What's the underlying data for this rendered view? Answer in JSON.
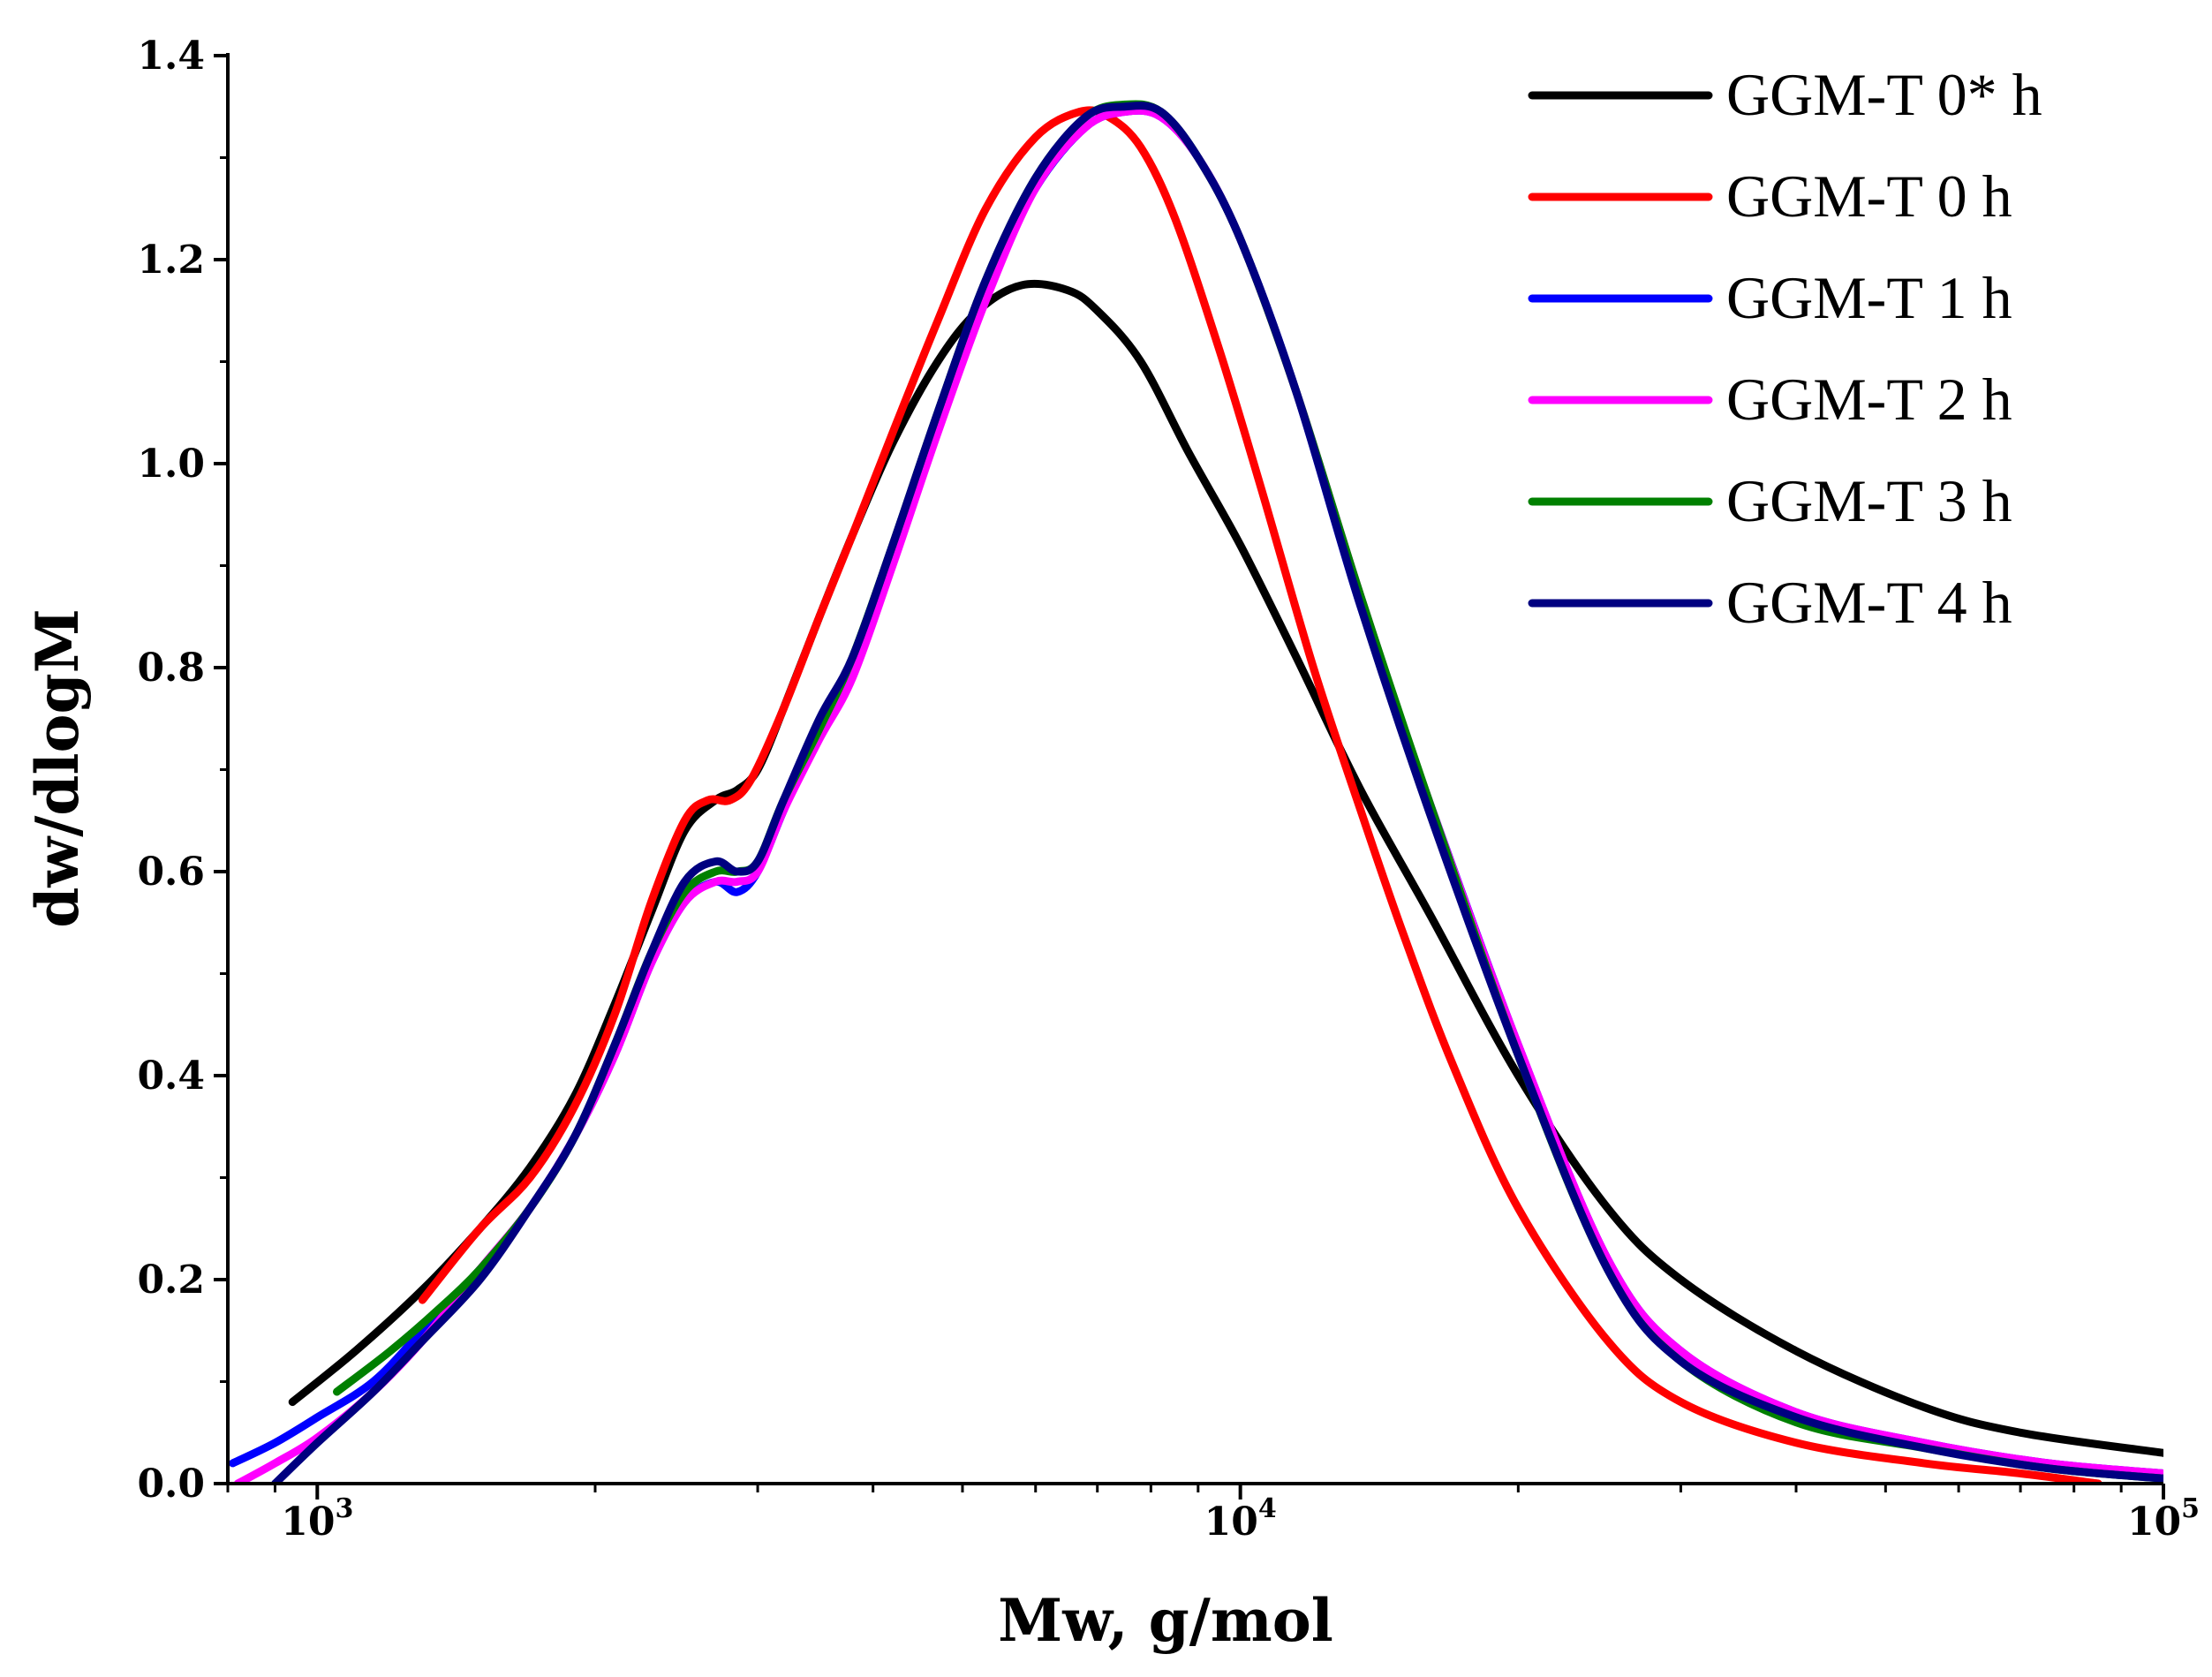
{
  "chart_data": {
    "type": "line",
    "title": "",
    "xlabel": "Mw, g/mol",
    "ylabel": "dw/dlogM",
    "xscale": "log",
    "xlim": [
      800,
      100000
    ],
    "ylim": [
      0,
      1.4
    ],
    "yticks": [
      "0.0",
      "0.2",
      "0.4",
      "0.6",
      "0.8",
      "1.0",
      "1.2",
      "1.4"
    ],
    "xticks": [
      {
        "base": "10",
        "exp": "3"
      },
      {
        "base": "10",
        "exp": "4"
      },
      {
        "base": "10",
        "exp": "5"
      }
    ],
    "grid": false,
    "legend_position": "top-right",
    "series": [
      {
        "name": "GGM-T 0* h",
        "color": "#000000",
        "x": [
          940,
          1100,
          1300,
          1500,
          1700,
          1900,
          2100,
          2300,
          2500,
          2700,
          2850,
          3000,
          3200,
          3500,
          3800,
          4200,
          4700,
          5200,
          5800,
          6500,
          7000,
          7800,
          8800,
          10000,
          11500,
          13500,
          16000,
          20000,
          25000,
          30000,
          40000,
          55000,
          70000,
          100000
        ],
        "y": [
          0.08,
          0.13,
          0.19,
          0.25,
          0.31,
          0.38,
          0.47,
          0.56,
          0.64,
          0.67,
          0.68,
          0.7,
          0.76,
          0.85,
          0.93,
          1.02,
          1.1,
          1.15,
          1.175,
          1.17,
          1.15,
          1.1,
          1.01,
          0.92,
          0.81,
          0.68,
          0.56,
          0.4,
          0.27,
          0.2,
          0.13,
          0.075,
          0.05,
          0.03
        ]
      },
      {
        "name": "GGM-T 0 h",
        "color": "#ff0000",
        "x": [
          1300,
          1500,
          1700,
          1900,
          2100,
          2300,
          2500,
          2650,
          2800,
          2950,
          3200,
          3500,
          3800,
          4200,
          4700,
          5300,
          6000,
          6700,
          7200,
          7800,
          8500,
          9500,
          10500,
          12000,
          13500,
          15000,
          17000,
          20000,
          25000,
          30000,
          40000,
          55000,
          70000,
          85000
        ],
        "y": [
          0.18,
          0.25,
          0.3,
          0.37,
          0.46,
          0.57,
          0.65,
          0.67,
          0.67,
          0.69,
          0.76,
          0.85,
          0.93,
          1.03,
          1.14,
          1.25,
          1.32,
          1.345,
          1.34,
          1.31,
          1.24,
          1.11,
          0.98,
          0.8,
          0.66,
          0.54,
          0.41,
          0.27,
          0.14,
          0.08,
          0.04,
          0.02,
          0.01,
          0.0
        ]
      },
      {
        "name": "GGM-T 1 h",
        "color": "#0000ff",
        "x": [
          810,
          900,
          1000,
          1150,
          1300,
          1500,
          1700,
          1900,
          2100,
          2300,
          2500,
          2700,
          2850,
          3000,
          3200,
          3500,
          3800,
          4200,
          4700,
          5300,
          6000,
          6800,
          7500,
          8200,
          9000,
          10000,
          11500,
          13500,
          16000,
          20000,
          25000,
          30000,
          40000,
          55000,
          75000,
          100000
        ],
        "y": [
          0.02,
          0.04,
          0.065,
          0.1,
          0.15,
          0.21,
          0.27,
          0.34,
          0.42,
          0.51,
          0.57,
          0.59,
          0.58,
          0.6,
          0.66,
          0.74,
          0.8,
          0.91,
          1.04,
          1.17,
          1.27,
          1.33,
          1.345,
          1.34,
          1.3,
          1.22,
          1.07,
          0.86,
          0.67,
          0.43,
          0.22,
          0.13,
          0.07,
          0.04,
          0.02,
          0.01
        ]
      },
      {
        "name": "GGM-T 2 h",
        "color": "#ff00ff",
        "x": [
          820,
          900,
          1000,
          1150,
          1300,
          1500,
          1700,
          1900,
          2100,
          2300,
          2500,
          2700,
          2850,
          3000,
          3200,
          3500,
          3800,
          4200,
          4700,
          5300,
          6000,
          6800,
          7500,
          8200,
          9000,
          10000,
          11500,
          13500,
          16000,
          20000,
          25000,
          30000,
          40000,
          55000,
          75000,
          100000
        ],
        "y": [
          0.0,
          0.02,
          0.045,
          0.09,
          0.14,
          0.21,
          0.27,
          0.34,
          0.42,
          0.51,
          0.57,
          0.59,
          0.59,
          0.6,
          0.66,
          0.73,
          0.79,
          0.9,
          1.03,
          1.16,
          1.27,
          1.33,
          1.345,
          1.34,
          1.3,
          1.22,
          1.07,
          0.87,
          0.67,
          0.43,
          0.22,
          0.13,
          0.07,
          0.04,
          0.02,
          0.01
        ]
      },
      {
        "name": "GGM-T 3 h",
        "color": "#008000",
        "x": [
          1050,
          1200,
          1350,
          1500,
          1700,
          1900,
          2100,
          2300,
          2500,
          2700,
          2850,
          3000,
          3200,
          3500,
          3800,
          4200,
          4700,
          5300,
          6000,
          6800,
          7500,
          8200,
          9000,
          10000,
          11500,
          13500,
          16000,
          20000,
          25000,
          30000,
          40000,
          55000,
          75000,
          100000
        ],
        "y": [
          0.09,
          0.13,
          0.17,
          0.21,
          0.27,
          0.34,
          0.43,
          0.52,
          0.58,
          0.6,
          0.6,
          0.61,
          0.67,
          0.74,
          0.81,
          0.92,
          1.05,
          1.18,
          1.28,
          1.34,
          1.352,
          1.345,
          1.3,
          1.22,
          1.07,
          0.87,
          0.67,
          0.42,
          0.21,
          0.12,
          0.06,
          0.035,
          0.015,
          0.005
        ]
      },
      {
        "name": "GGM-T 4 h",
        "color": "#000080",
        "x": [
          900,
          1000,
          1150,
          1300,
          1500,
          1700,
          1900,
          2100,
          2300,
          2500,
          2700,
          2850,
          3000,
          3200,
          3500,
          3800,
          4200,
          4700,
          5300,
          6000,
          6800,
          7500,
          8200,
          9000,
          10000,
          11500,
          13500,
          16000,
          20000,
          25000,
          30000,
          40000,
          55000,
          75000,
          100000
        ],
        "y": [
          0.0,
          0.04,
          0.09,
          0.14,
          0.2,
          0.27,
          0.34,
          0.43,
          0.52,
          0.59,
          0.61,
          0.6,
          0.61,
          0.67,
          0.75,
          0.81,
          0.92,
          1.05,
          1.18,
          1.28,
          1.34,
          1.35,
          1.345,
          1.3,
          1.22,
          1.07,
          0.86,
          0.66,
          0.42,
          0.21,
          0.12,
          0.065,
          0.035,
          0.015,
          0.005
        ]
      }
    ]
  }
}
